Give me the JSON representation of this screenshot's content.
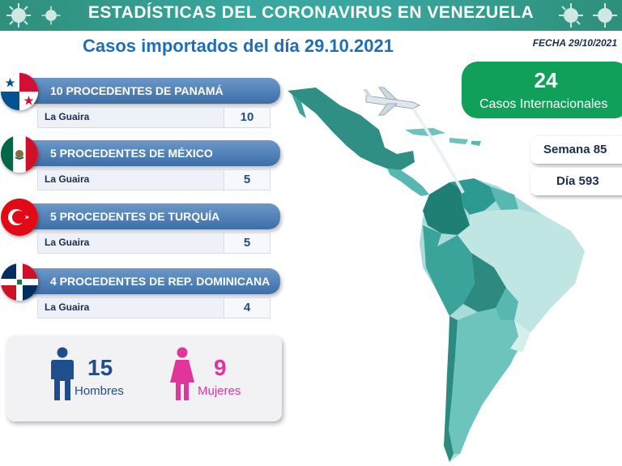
{
  "banner": {
    "title": "ESTADÍSTICAS DEL CORONAVIRUS EN VENEZUELA"
  },
  "subtitle": "Casos importados del día 29.10.2021",
  "fecha": "FECHA 29/10/2021",
  "entries": [
    {
      "header": "10 PROCEDENTES DE PANAMÁ",
      "state": "La Guaira",
      "value": "10",
      "flag": "panama-flag-icon"
    },
    {
      "header": "5 PROCEDENTES DE MÉXICO",
      "state": "La Guaira",
      "value": "5",
      "flag": "mexico-flag-icon"
    },
    {
      "header": "5 PROCEDENTES DE TURQUÍA",
      "state": "La Guaira",
      "value": "5",
      "flag": "turkey-flag-icon"
    },
    {
      "header": "4 PROCEDENTES DE REP. DOMINICANA",
      "state": "La Guaira",
      "value": "4",
      "flag": "dominican-republic-flag-icon"
    }
  ],
  "gender": {
    "men": {
      "value": "15",
      "label": "Hombres",
      "color": "#1f4e8c"
    },
    "women": {
      "value": "9",
      "label": "Mujeres",
      "color": "#e0359a"
    }
  },
  "total": {
    "value": "24",
    "label": "Casos Internacionales",
    "color": "#10a05a"
  },
  "semana": "Semana 85",
  "dia": "Día 593"
}
